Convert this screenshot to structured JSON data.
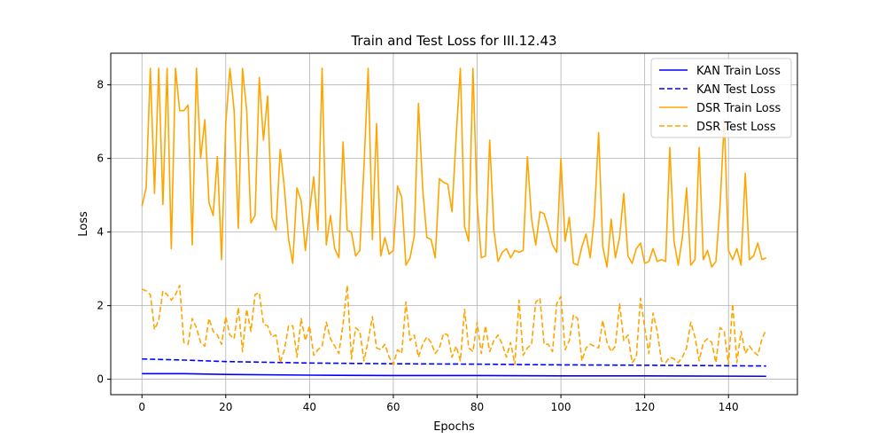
{
  "chart_data": {
    "type": "line",
    "title": "Train and Test Loss for III.12.43",
    "xlabel": "Epochs",
    "ylabel": "Loss",
    "xlim": [
      -7.45,
      156.45
    ],
    "ylim": [
      -0.42,
      8.86
    ],
    "xticks": [
      0,
      20,
      40,
      60,
      80,
      100,
      120,
      140
    ],
    "yticks": [
      0,
      2,
      4,
      6,
      8
    ],
    "grid": true,
    "legend_position": "top-right",
    "colors": {
      "kan": "#0000ff",
      "dsr": "#ffa500"
    },
    "series": [
      {
        "name": "KAN Train Loss",
        "color": "#0000ff",
        "dash": "solid",
        "points": [
          [
            0,
            0.15
          ],
          [
            10,
            0.15
          ],
          [
            20,
            0.13
          ],
          [
            40,
            0.11
          ],
          [
            60,
            0.1
          ],
          [
            80,
            0.1
          ],
          [
            100,
            0.09
          ],
          [
            120,
            0.09
          ],
          [
            149,
            0.08
          ]
        ]
      },
      {
        "name": "KAN Test Loss",
        "color": "#0000ff",
        "dash": "dashed",
        "points": [
          [
            0,
            0.55
          ],
          [
            10,
            0.52
          ],
          [
            20,
            0.48
          ],
          [
            40,
            0.44
          ],
          [
            60,
            0.42
          ],
          [
            80,
            0.41
          ],
          [
            100,
            0.39
          ],
          [
            120,
            0.38
          ],
          [
            149,
            0.36
          ]
        ]
      },
      {
        "name": "DSR Train Loss",
        "color": "#ffa500",
        "dash": "solid",
        "points": [
          [
            0,
            4.7
          ],
          [
            1,
            5.2
          ],
          [
            2,
            8.45
          ],
          [
            3,
            5.05
          ],
          [
            4,
            8.45
          ],
          [
            5,
            4.75
          ],
          [
            6,
            8.45
          ],
          [
            7,
            3.55
          ],
          [
            8,
            8.45
          ],
          [
            9,
            7.3
          ],
          [
            10,
            7.3
          ],
          [
            11,
            7.45
          ],
          [
            12,
            3.65
          ],
          [
            13,
            8.45
          ],
          [
            14,
            6.0
          ],
          [
            15,
            7.05
          ],
          [
            16,
            4.8
          ],
          [
            17,
            4.45
          ],
          [
            18,
            6.05
          ],
          [
            19,
            3.25
          ],
          [
            20,
            6.95
          ],
          [
            21,
            8.45
          ],
          [
            22,
            7.3
          ],
          [
            23,
            4.1
          ],
          [
            24,
            8.45
          ],
          [
            25,
            7.3
          ],
          [
            26,
            4.25
          ],
          [
            27,
            4.45
          ],
          [
            28,
            8.2
          ],
          [
            29,
            6.5
          ],
          [
            30,
            7.7
          ],
          [
            31,
            4.4
          ],
          [
            32,
            4.05
          ],
          [
            33,
            6.25
          ],
          [
            34,
            5.2
          ],
          [
            35,
            3.8
          ],
          [
            36,
            3.15
          ],
          [
            37,
            5.2
          ],
          [
            38,
            4.85
          ],
          [
            39,
            3.5
          ],
          [
            40,
            4.55
          ],
          [
            41,
            5.5
          ],
          [
            42,
            4.05
          ],
          [
            43,
            8.45
          ],
          [
            44,
            3.65
          ],
          [
            45,
            4.45
          ],
          [
            46,
            3.55
          ],
          [
            47,
            3.3
          ],
          [
            48,
            6.45
          ],
          [
            49,
            4.05
          ],
          [
            50,
            4.0
          ],
          [
            51,
            3.35
          ],
          [
            52,
            3.5
          ],
          [
            53,
            5.8
          ],
          [
            54,
            8.45
          ],
          [
            55,
            3.8
          ],
          [
            56,
            6.95
          ],
          [
            57,
            3.35
          ],
          [
            58,
            3.85
          ],
          [
            59,
            3.4
          ],
          [
            60,
            3.5
          ],
          [
            61,
            5.25
          ],
          [
            62,
            4.95
          ],
          [
            63,
            3.1
          ],
          [
            64,
            3.3
          ],
          [
            65,
            3.9
          ],
          [
            66,
            7.5
          ],
          [
            67,
            5.2
          ],
          [
            68,
            3.85
          ],
          [
            69,
            3.8
          ],
          [
            70,
            3.3
          ],
          [
            71,
            5.45
          ],
          [
            72,
            5.35
          ],
          [
            73,
            5.3
          ],
          [
            74,
            4.55
          ],
          [
            75,
            6.6
          ],
          [
            76,
            8.45
          ],
          [
            77,
            4.15
          ],
          [
            78,
            3.75
          ],
          [
            79,
            8.45
          ],
          [
            80,
            4.8
          ],
          [
            81,
            3.3
          ],
          [
            82,
            3.35
          ],
          [
            83,
            6.5
          ],
          [
            84,
            4.05
          ],
          [
            85,
            3.2
          ],
          [
            86,
            3.45
          ],
          [
            87,
            3.55
          ],
          [
            88,
            3.3
          ],
          [
            89,
            3.5
          ],
          [
            90,
            3.45
          ],
          [
            91,
            3.5
          ],
          [
            92,
            6.05
          ],
          [
            93,
            4.35
          ],
          [
            94,
            3.65
          ],
          [
            95,
            4.55
          ],
          [
            96,
            4.5
          ],
          [
            97,
            4.1
          ],
          [
            98,
            3.65
          ],
          [
            99,
            3.45
          ],
          [
            100,
            6.0
          ],
          [
            101,
            3.75
          ],
          [
            102,
            4.4
          ],
          [
            103,
            3.15
          ],
          [
            104,
            3.1
          ],
          [
            105,
            3.6
          ],
          [
            106,
            3.95
          ],
          [
            107,
            3.3
          ],
          [
            108,
            4.45
          ],
          [
            109,
            6.7
          ],
          [
            110,
            3.6
          ],
          [
            111,
            3.05
          ],
          [
            112,
            4.35
          ],
          [
            113,
            3.3
          ],
          [
            114,
            3.85
          ],
          [
            115,
            5.05
          ],
          [
            116,
            3.35
          ],
          [
            117,
            3.15
          ],
          [
            118,
            3.55
          ],
          [
            119,
            3.7
          ],
          [
            120,
            3.15
          ],
          [
            121,
            3.2
          ],
          [
            122,
            3.55
          ],
          [
            123,
            3.2
          ],
          [
            124,
            3.25
          ],
          [
            125,
            3.2
          ],
          [
            126,
            6.3
          ],
          [
            127,
            3.75
          ],
          [
            128,
            3.1
          ],
          [
            129,
            3.85
          ],
          [
            130,
            5.2
          ],
          [
            131,
            3.1
          ],
          [
            132,
            3.25
          ],
          [
            133,
            6.3
          ],
          [
            134,
            3.25
          ],
          [
            135,
            3.5
          ],
          [
            136,
            3.05
          ],
          [
            137,
            3.2
          ],
          [
            138,
            4.75
          ],
          [
            139,
            7.05
          ],
          [
            140,
            3.5
          ],
          [
            141,
            3.25
          ],
          [
            142,
            3.55
          ],
          [
            143,
            3.1
          ],
          [
            144,
            5.6
          ],
          [
            145,
            3.25
          ],
          [
            146,
            3.35
          ],
          [
            147,
            3.7
          ],
          [
            148,
            3.25
          ],
          [
            149,
            3.3
          ]
        ]
      },
      {
        "name": "DSR Test Loss",
        "color": "#ffa500",
        "dash": "dashed",
        "points": [
          [
            0,
            2.45
          ],
          [
            1,
            2.4
          ],
          [
            2,
            2.3
          ],
          [
            3,
            1.35
          ],
          [
            4,
            1.6
          ],
          [
            5,
            2.4
          ],
          [
            6,
            2.3
          ],
          [
            7,
            2.15
          ],
          [
            8,
            2.3
          ],
          [
            9,
            2.55
          ],
          [
            10,
            1.0
          ],
          [
            11,
            0.95
          ],
          [
            12,
            1.65
          ],
          [
            13,
            1.4
          ],
          [
            14,
            1.0
          ],
          [
            15,
            0.9
          ],
          [
            16,
            1.65
          ],
          [
            17,
            1.3
          ],
          [
            18,
            1.2
          ],
          [
            19,
            0.95
          ],
          [
            20,
            1.7
          ],
          [
            21,
            1.2
          ],
          [
            22,
            1.1
          ],
          [
            23,
            1.95
          ],
          [
            24,
            0.75
          ],
          [
            25,
            1.9
          ],
          [
            26,
            1.3
          ],
          [
            27,
            2.3
          ],
          [
            28,
            2.35
          ],
          [
            29,
            1.5
          ],
          [
            30,
            1.45
          ],
          [
            31,
            1.15
          ],
          [
            32,
            1.2
          ],
          [
            33,
            0.45
          ],
          [
            34,
            0.8
          ],
          [
            35,
            1.45
          ],
          [
            36,
            1.45
          ],
          [
            37,
            0.6
          ],
          [
            38,
            1.65
          ],
          [
            39,
            1.05
          ],
          [
            40,
            1.45
          ],
          [
            41,
            0.65
          ],
          [
            42,
            0.8
          ],
          [
            43,
            0.9
          ],
          [
            44,
            1.55
          ],
          [
            45,
            1.1
          ],
          [
            46,
            0.9
          ],
          [
            47,
            0.7
          ],
          [
            48,
            1.5
          ],
          [
            49,
            2.55
          ],
          [
            50,
            0.55
          ],
          [
            51,
            1.4
          ],
          [
            52,
            1.3
          ],
          [
            53,
            0.5
          ],
          [
            54,
            1.05
          ],
          [
            55,
            1.7
          ],
          [
            56,
            0.85
          ],
          [
            57,
            0.8
          ],
          [
            58,
            0.95
          ],
          [
            59,
            0.6
          ],
          [
            60,
            0.4
          ],
          [
            61,
            0.8
          ],
          [
            62,
            0.7
          ],
          [
            63,
            2.1
          ],
          [
            64,
            1.05
          ],
          [
            65,
            1.2
          ],
          [
            66,
            0.6
          ],
          [
            67,
            0.95
          ],
          [
            68,
            1.15
          ],
          [
            69,
            1.0
          ],
          [
            70,
            0.7
          ],
          [
            71,
            0.85
          ],
          [
            72,
            1.25
          ],
          [
            73,
            1.2
          ],
          [
            74,
            0.6
          ],
          [
            75,
            0.9
          ],
          [
            76,
            0.5
          ],
          [
            77,
            1.9
          ],
          [
            78,
            0.85
          ],
          [
            79,
            0.75
          ],
          [
            80,
            1.55
          ],
          [
            81,
            0.7
          ],
          [
            82,
            1.45
          ],
          [
            83,
            0.75
          ],
          [
            84,
            1.05
          ],
          [
            85,
            1.2
          ],
          [
            86,
            0.95
          ],
          [
            87,
            0.6
          ],
          [
            88,
            1.0
          ],
          [
            89,
            0.4
          ],
          [
            90,
            2.15
          ],
          [
            91,
            0.65
          ],
          [
            92,
            0.85
          ],
          [
            93,
            0.95
          ],
          [
            94,
            2.1
          ],
          [
            95,
            2.2
          ],
          [
            96,
            0.95
          ],
          [
            97,
            0.95
          ],
          [
            98,
            0.75
          ],
          [
            99,
            2.05
          ],
          [
            100,
            2.25
          ],
          [
            101,
            0.8
          ],
          [
            102,
            1.05
          ],
          [
            103,
            1.75
          ],
          [
            104,
            1.65
          ],
          [
            105,
            0.5
          ],
          [
            106,
            0.85
          ],
          [
            107,
            0.95
          ],
          [
            108,
            0.9
          ],
          [
            109,
            0.85
          ],
          [
            110,
            1.6
          ],
          [
            111,
            1.0
          ],
          [
            112,
            0.75
          ],
          [
            113,
            0.9
          ],
          [
            114,
            2.05
          ],
          [
            115,
            1.05
          ],
          [
            116,
            1.2
          ],
          [
            117,
            0.45
          ],
          [
            118,
            0.6
          ],
          [
            119,
            2.2
          ],
          [
            120,
            1.4
          ],
          [
            121,
            0.7
          ],
          [
            122,
            1.8
          ],
          [
            123,
            1.3
          ],
          [
            124,
            0.5
          ],
          [
            125,
            0.45
          ],
          [
            126,
            0.6
          ],
          [
            127,
            0.55
          ],
          [
            128,
            0.45
          ],
          [
            129,
            0.6
          ],
          [
            130,
            0.85
          ],
          [
            131,
            1.55
          ],
          [
            132,
            1.15
          ],
          [
            133,
            0.5
          ],
          [
            134,
            1.0
          ],
          [
            135,
            1.1
          ],
          [
            136,
            1.0
          ],
          [
            137,
            0.45
          ],
          [
            138,
            1.4
          ],
          [
            139,
            1.3
          ],
          [
            140,
            0.4
          ],
          [
            141,
            2.05
          ],
          [
            142,
            0.45
          ],
          [
            143,
            1.3
          ],
          [
            144,
            0.7
          ],
          [
            145,
            0.9
          ],
          [
            146,
            0.75
          ],
          [
            147,
            0.65
          ],
          [
            148,
            1.1
          ],
          [
            149,
            1.35
          ]
        ]
      }
    ]
  }
}
